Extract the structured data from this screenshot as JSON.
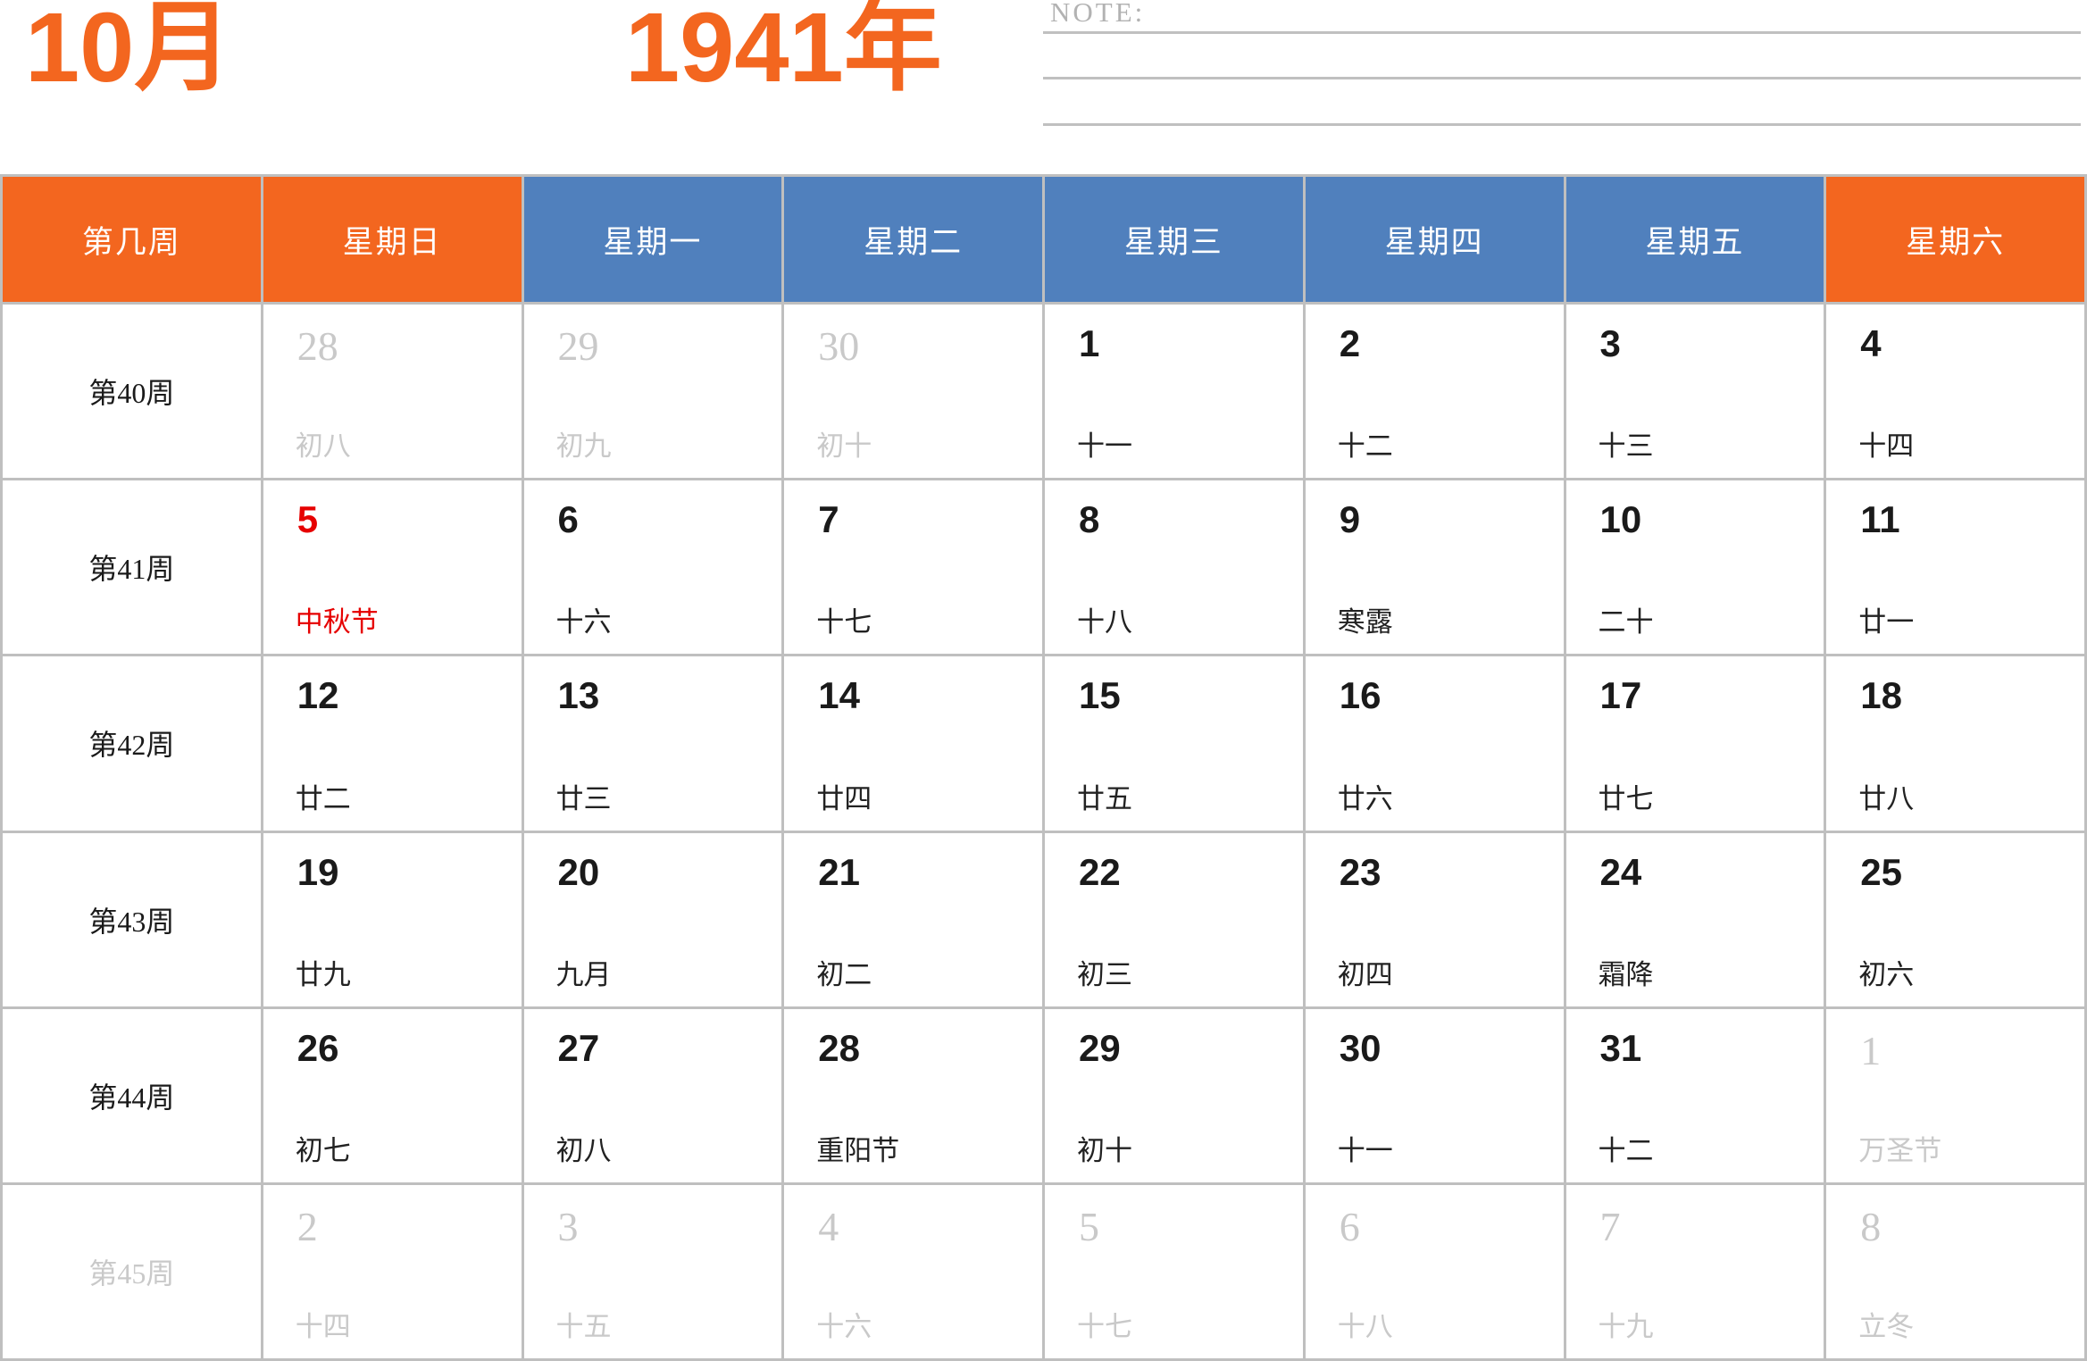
{
  "title": {
    "month": "10月",
    "year": "1941年"
  },
  "note": {
    "label": "NOTE:",
    "line_count": 3
  },
  "colors": {
    "accent_orange": "#F3661F",
    "accent_blue": "#5080BD",
    "grid_gray": "#BFBFBF",
    "muted_gray": "#C9C9C9",
    "holiday_red": "#E60000",
    "text_black": "#1A1A1A",
    "note_gray": "#B2B2B2"
  },
  "weekday_header": [
    {
      "label": "第几周",
      "variant": "orange"
    },
    {
      "label": "星期日",
      "variant": "orange"
    },
    {
      "label": "星期一",
      "variant": "blue"
    },
    {
      "label": "星期二",
      "variant": "blue"
    },
    {
      "label": "星期三",
      "variant": "blue"
    },
    {
      "label": "星期四",
      "variant": "blue"
    },
    {
      "label": "星期五",
      "variant": "blue"
    },
    {
      "label": "星期六",
      "variant": "orange"
    }
  ],
  "weeks": [
    {
      "label": "第40周",
      "label_state": "normal",
      "days": [
        {
          "date": "28",
          "lunar": "初八",
          "state": "muted"
        },
        {
          "date": "29",
          "lunar": "初九",
          "state": "muted"
        },
        {
          "date": "30",
          "lunar": "初十",
          "state": "muted"
        },
        {
          "date": "1",
          "lunar": "十一",
          "state": "normal"
        },
        {
          "date": "2",
          "lunar": "十二",
          "state": "normal"
        },
        {
          "date": "3",
          "lunar": "十三",
          "state": "normal"
        },
        {
          "date": "4",
          "lunar": "十四",
          "state": "normal"
        }
      ]
    },
    {
      "label": "第41周",
      "label_state": "normal",
      "days": [
        {
          "date": "5",
          "lunar": "中秋节",
          "state": "holiday"
        },
        {
          "date": "6",
          "lunar": "十六",
          "state": "normal"
        },
        {
          "date": "7",
          "lunar": "十七",
          "state": "normal"
        },
        {
          "date": "8",
          "lunar": "十八",
          "state": "normal"
        },
        {
          "date": "9",
          "lunar": "寒露",
          "state": "normal"
        },
        {
          "date": "10",
          "lunar": "二十",
          "state": "normal"
        },
        {
          "date": "11",
          "lunar": "廿一",
          "state": "normal"
        }
      ]
    },
    {
      "label": "第42周",
      "label_state": "normal",
      "days": [
        {
          "date": "12",
          "lunar": "廿二",
          "state": "normal"
        },
        {
          "date": "13",
          "lunar": "廿三",
          "state": "normal"
        },
        {
          "date": "14",
          "lunar": "廿四",
          "state": "normal"
        },
        {
          "date": "15",
          "lunar": "廿五",
          "state": "normal"
        },
        {
          "date": "16",
          "lunar": "廿六",
          "state": "normal"
        },
        {
          "date": "17",
          "lunar": "廿七",
          "state": "normal"
        },
        {
          "date": "18",
          "lunar": "廿八",
          "state": "normal"
        }
      ]
    },
    {
      "label": "第43周",
      "label_state": "normal",
      "days": [
        {
          "date": "19",
          "lunar": "廿九",
          "state": "normal"
        },
        {
          "date": "20",
          "lunar": "九月",
          "state": "normal"
        },
        {
          "date": "21",
          "lunar": "初二",
          "state": "normal"
        },
        {
          "date": "22",
          "lunar": "初三",
          "state": "normal"
        },
        {
          "date": "23",
          "lunar": "初四",
          "state": "normal"
        },
        {
          "date": "24",
          "lunar": "霜降",
          "state": "normal"
        },
        {
          "date": "25",
          "lunar": "初六",
          "state": "normal"
        }
      ]
    },
    {
      "label": "第44周",
      "label_state": "normal",
      "days": [
        {
          "date": "26",
          "lunar": "初七",
          "state": "normal"
        },
        {
          "date": "27",
          "lunar": "初八",
          "state": "normal"
        },
        {
          "date": "28",
          "lunar": "重阳节",
          "state": "normal"
        },
        {
          "date": "29",
          "lunar": "初十",
          "state": "normal"
        },
        {
          "date": "30",
          "lunar": "十一",
          "state": "normal"
        },
        {
          "date": "31",
          "lunar": "十二",
          "state": "normal"
        },
        {
          "date": "1",
          "lunar": "万圣节",
          "state": "muted"
        }
      ]
    },
    {
      "label": "第45周",
      "label_state": "muted",
      "days": [
        {
          "date": "2",
          "lunar": "十四",
          "state": "muted"
        },
        {
          "date": "3",
          "lunar": "十五",
          "state": "muted"
        },
        {
          "date": "4",
          "lunar": "十六",
          "state": "muted"
        },
        {
          "date": "5",
          "lunar": "十七",
          "state": "muted"
        },
        {
          "date": "6",
          "lunar": "十八",
          "state": "muted"
        },
        {
          "date": "7",
          "lunar": "十九",
          "state": "muted"
        },
        {
          "date": "8",
          "lunar": "立冬",
          "state": "muted"
        }
      ]
    }
  ]
}
